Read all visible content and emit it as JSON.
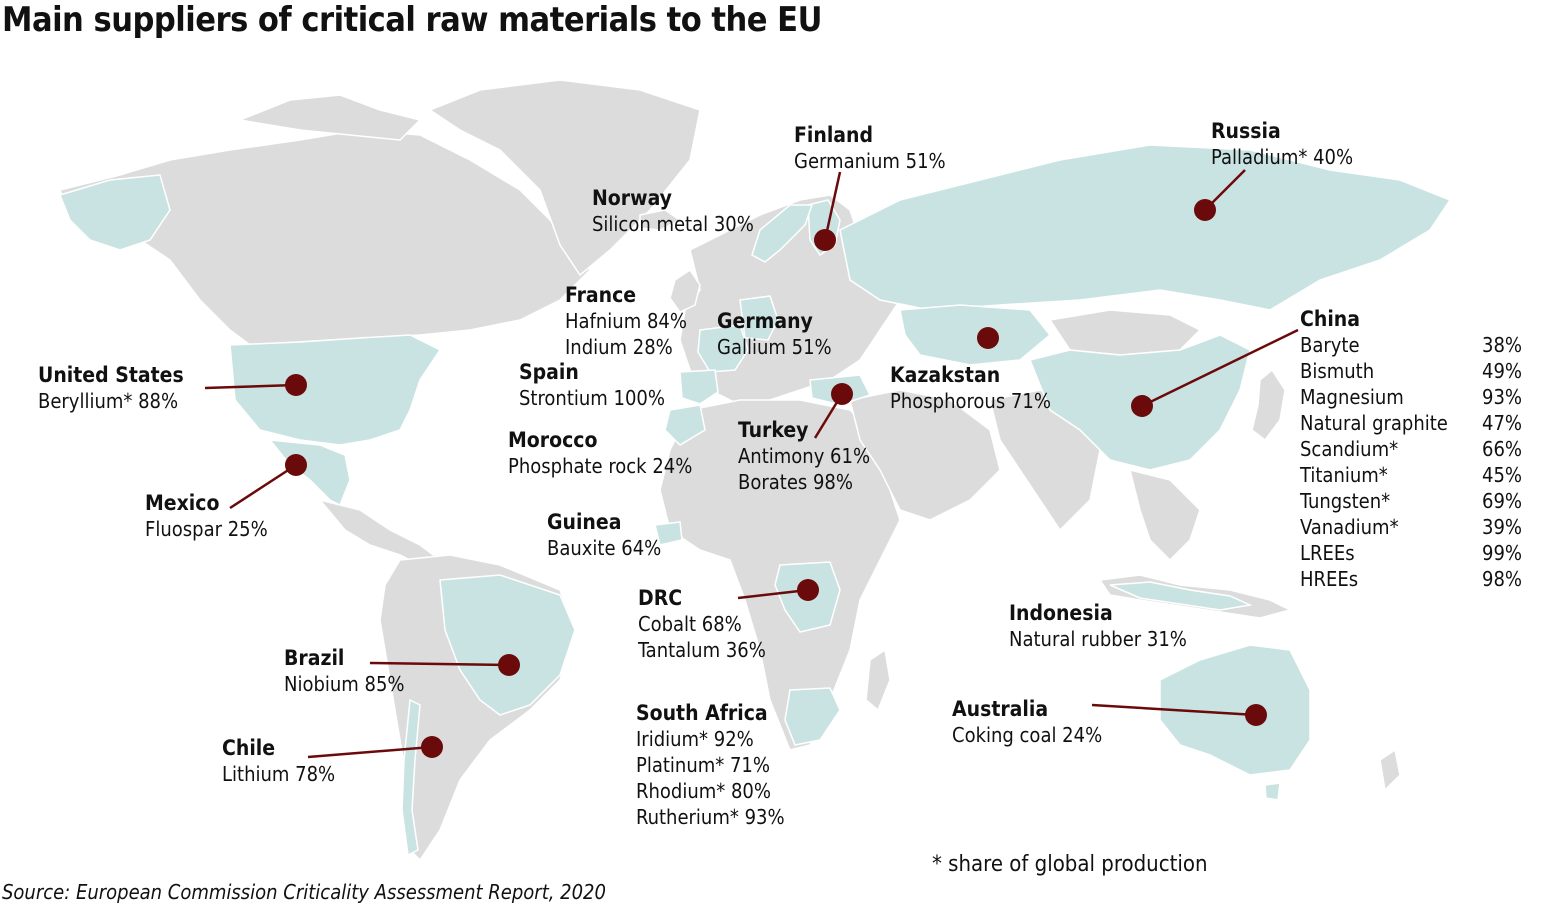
{
  "title": "Main suppliers of critical raw materials to the EU",
  "colors": {
    "land": "#dcdcdc",
    "supplier_land": "#c9e3e3",
    "border": "#ffffff",
    "marker": "#6b0a0a",
    "line": "#6b0a0a"
  },
  "suppliers": [
    {
      "name": "Finland",
      "materials": [
        "Germanium 51%"
      ]
    },
    {
      "name": "Russia",
      "materials": [
        "Palladium* 40%"
      ]
    },
    {
      "name": "Norway",
      "materials": [
        "Silicon metal 30%"
      ]
    },
    {
      "name": "France",
      "materials": [
        "Hafnium 84%",
        "Indium 28%"
      ]
    },
    {
      "name": "Germany",
      "materials": [
        "Gallium 51%"
      ]
    },
    {
      "name": "United States",
      "materials": [
        "Beryllium* 88%"
      ]
    },
    {
      "name": "Spain",
      "materials": [
        "Strontium 100%"
      ]
    },
    {
      "name": "Kazakstan",
      "materials": [
        "Phosphorous 71%"
      ]
    },
    {
      "name": "Morocco",
      "materials": [
        "Phosphate rock 24%"
      ]
    },
    {
      "name": "Turkey",
      "materials": [
        "Antimony 61%",
        "Borates 98%"
      ]
    },
    {
      "name": "Mexico",
      "materials": [
        "Fluospar 25%"
      ]
    },
    {
      "name": "Guinea",
      "materials": [
        "Bauxite 64%"
      ]
    },
    {
      "name": "DRC",
      "materials": [
        "Cobalt 68%",
        "Tantalum 36%"
      ]
    },
    {
      "name": "Indonesia",
      "materials": [
        "Natural rubber 31%"
      ]
    },
    {
      "name": "Brazil",
      "materials": [
        "Niobium 85%"
      ]
    },
    {
      "name": "South Africa",
      "materials": [
        "Iridium* 92%",
        "Platinum* 71%",
        "Rhodium* 80%",
        "Rutherium* 93%"
      ]
    },
    {
      "name": "Australia",
      "materials": [
        "Coking coal 24%"
      ]
    },
    {
      "name": "Chile",
      "materials": [
        "Lithium 78%"
      ]
    }
  ],
  "china": {
    "name": "China",
    "materials": [
      {
        "material": "Baryte",
        "share": "38%"
      },
      {
        "material": "Bismuth",
        "share": "49%"
      },
      {
        "material": "Magnesium",
        "share": "93%"
      },
      {
        "material": "Natural graphite",
        "share": "47%"
      },
      {
        "material": "Scandium*",
        "share": "66%"
      },
      {
        "material": "Titanium*",
        "share": "45%"
      },
      {
        "material": "Tungsten*",
        "share": "69%"
      },
      {
        "material": "Vanadium*",
        "share": "39%"
      },
      {
        "material": "LREEs",
        "share": "99%"
      },
      {
        "material": "HREEs",
        "share": "98%"
      }
    ]
  },
  "footnote": "* share of global production",
  "source": "Source: European Commission Criticality Assessment Report, 2020"
}
